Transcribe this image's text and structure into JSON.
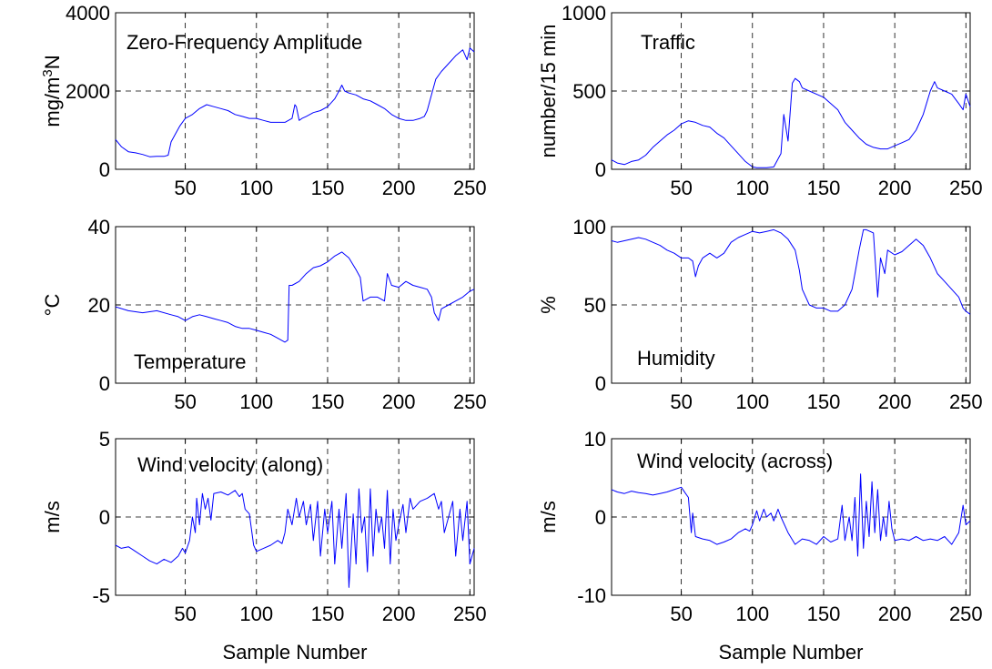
{
  "colors": {
    "series": "#0000ff",
    "axes": "#000000",
    "background": "#ffffff"
  },
  "chart_data": [
    {
      "type": "line",
      "annotation": "Zero-Frequency Amplitude",
      "ylabel": "mg/m³N",
      "xlabel": "",
      "xlim": [
        1,
        253
      ],
      "ylim": [
        0,
        4000
      ],
      "xticks": [
        50,
        100,
        150,
        200,
        250
      ],
      "yticks": [
        0,
        2000,
        4000
      ],
      "grid": true,
      "x": [
        1,
        5,
        10,
        15,
        20,
        25,
        30,
        35,
        38,
        40,
        43,
        46,
        50,
        55,
        60,
        65,
        70,
        75,
        80,
        85,
        90,
        95,
        100,
        105,
        110,
        115,
        120,
        125,
        127,
        128,
        130,
        132,
        135,
        140,
        145,
        150,
        155,
        158,
        160,
        162,
        165,
        170,
        175,
        180,
        185,
        190,
        195,
        200,
        205,
        210,
        215,
        218,
        220,
        223,
        226,
        230,
        235,
        240,
        245,
        248,
        250,
        253
      ],
      "y": [
        760,
        580,
        450,
        420,
        380,
        320,
        330,
        330,
        360,
        700,
        900,
        1100,
        1300,
        1400,
        1550,
        1650,
        1600,
        1550,
        1500,
        1400,
        1350,
        1300,
        1300,
        1250,
        1200,
        1200,
        1200,
        1300,
        1650,
        1600,
        1250,
        1300,
        1350,
        1450,
        1500,
        1600,
        1800,
        2000,
        2150,
        2000,
        1950,
        1900,
        1800,
        1750,
        1650,
        1550,
        1400,
        1300,
        1250,
        1250,
        1300,
        1350,
        1500,
        1900,
        2300,
        2500,
        2700,
        2900,
        3050,
        2800,
        3100,
        3000
      ]
    },
    {
      "type": "line",
      "annotation": "Traffic",
      "ylabel": "number/15 min",
      "xlabel": "",
      "xlim": [
        1,
        253
      ],
      "ylim": [
        0,
        1000
      ],
      "xticks": [
        50,
        100,
        150,
        200,
        250
      ],
      "yticks": [
        0,
        500,
        1000
      ],
      "grid": true,
      "x": [
        1,
        5,
        10,
        15,
        20,
        25,
        30,
        35,
        40,
        45,
        50,
        55,
        60,
        65,
        70,
        75,
        80,
        85,
        90,
        95,
        100,
        103,
        105,
        110,
        115,
        120,
        122,
        125,
        128,
        130,
        133,
        135,
        140,
        145,
        150,
        155,
        160,
        165,
        170,
        175,
        180,
        185,
        190,
        195,
        200,
        205,
        210,
        215,
        220,
        225,
        228,
        230,
        235,
        240,
        245,
        248,
        250,
        253
      ],
      "y": [
        60,
        40,
        30,
        50,
        60,
        90,
        140,
        180,
        220,
        250,
        290,
        310,
        300,
        280,
        270,
        230,
        200,
        150,
        100,
        50,
        15,
        10,
        10,
        10,
        15,
        100,
        350,
        180,
        550,
        580,
        560,
        520,
        500,
        480,
        460,
        420,
        380,
        300,
        250,
        200,
        160,
        140,
        130,
        130,
        150,
        170,
        190,
        250,
        350,
        500,
        560,
        520,
        500,
        480,
        420,
        380,
        480,
        400
      ]
    },
    {
      "type": "line",
      "annotation": "Temperature",
      "ylabel": "°C",
      "xlabel": "",
      "xlim": [
        1,
        253
      ],
      "ylim": [
        0,
        40
      ],
      "xticks": [
        50,
        100,
        150,
        200,
        250
      ],
      "yticks": [
        0,
        20,
        40
      ],
      "grid": true,
      "x": [
        1,
        10,
        20,
        30,
        40,
        45,
        50,
        55,
        60,
        65,
        70,
        75,
        80,
        85,
        90,
        95,
        100,
        105,
        110,
        115,
        120,
        122,
        123,
        125,
        130,
        135,
        140,
        145,
        150,
        155,
        160,
        165,
        170,
        173,
        175,
        180,
        185,
        190,
        192,
        195,
        200,
        205,
        210,
        215,
        220,
        223,
        225,
        228,
        230,
        235,
        240,
        245,
        250,
        253
      ],
      "y": [
        19.5,
        18.5,
        18,
        18.5,
        17.5,
        17,
        16,
        17,
        17.5,
        17,
        16.5,
        16,
        15.5,
        14.5,
        14,
        14,
        13.5,
        13,
        12.5,
        11.5,
        10.5,
        11,
        25,
        25,
        26,
        28,
        29.5,
        30,
        31,
        32.5,
        33.5,
        32,
        29,
        27,
        21,
        22,
        22,
        21,
        28,
        25,
        24.5,
        26,
        25,
        24.5,
        24,
        22,
        18,
        16,
        19,
        20,
        21,
        22,
        23.5,
        24
      ]
    },
    {
      "type": "line",
      "annotation": "Humidity",
      "ylabel": "%",
      "xlabel": "",
      "xlim": [
        1,
        253
      ],
      "ylim": [
        0,
        100
      ],
      "xticks": [
        50,
        100,
        150,
        200,
        250
      ],
      "yticks": [
        0,
        50,
        100
      ],
      "grid": true,
      "x": [
        1,
        5,
        10,
        15,
        20,
        25,
        30,
        35,
        40,
        45,
        50,
        55,
        58,
        60,
        62,
        65,
        70,
        75,
        80,
        85,
        90,
        95,
        100,
        105,
        110,
        115,
        120,
        125,
        130,
        133,
        135,
        140,
        145,
        150,
        155,
        160,
        165,
        170,
        172,
        175,
        178,
        180,
        185,
        188,
        190,
        193,
        195,
        200,
        205,
        210,
        215,
        220,
        225,
        230,
        235,
        240,
        245,
        248,
        250,
        253
      ],
      "y": [
        91,
        90,
        91,
        92,
        93,
        92,
        90,
        88,
        85,
        83,
        80,
        80,
        78,
        68,
        75,
        80,
        83,
        80,
        83,
        90,
        93,
        95,
        97,
        96,
        97,
        98,
        96,
        92,
        85,
        72,
        60,
        50,
        48,
        48,
        46,
        46,
        50,
        60,
        70,
        85,
        98,
        98,
        96,
        55,
        80,
        70,
        85,
        82,
        84,
        88,
        92,
        88,
        80,
        70,
        65,
        60,
        55,
        48,
        46,
        44
      ]
    },
    {
      "type": "line",
      "annotation": "Wind velocity (along)",
      "ylabel": "m/s",
      "xlabel": "Sample Number",
      "xlim": [
        1,
        253
      ],
      "ylim": [
        -5,
        5
      ],
      "xticks": [
        50,
        100,
        150,
        200,
        250
      ],
      "yticks": [
        -5,
        0,
        5
      ],
      "grid": true,
      "x": [
        1,
        5,
        10,
        15,
        20,
        25,
        30,
        35,
        40,
        45,
        48,
        50,
        53,
        55,
        57,
        58,
        60,
        62,
        64,
        66,
        68,
        70,
        75,
        80,
        85,
        88,
        90,
        92,
        95,
        98,
        100,
        105,
        110,
        115,
        118,
        120,
        122,
        125,
        128,
        130,
        133,
        135,
        138,
        140,
        143,
        145,
        148,
        150,
        153,
        155,
        158,
        160,
        163,
        165,
        168,
        170,
        172,
        174,
        176,
        178,
        180,
        182,
        184,
        186,
        188,
        190,
        192,
        194,
        196,
        198,
        200,
        203,
        205,
        208,
        210,
        215,
        220,
        225,
        228,
        230,
        232,
        235,
        238,
        240,
        243,
        245,
        248,
        250,
        253
      ],
      "y": [
        -1.8,
        -2,
        -1.9,
        -2.2,
        -2.5,
        -2.8,
        -3,
        -2.7,
        -2.9,
        -2.5,
        -2,
        -2.3,
        -1.5,
        0,
        -1,
        1.2,
        -0.5,
        1.5,
        0.5,
        1.2,
        -0.2,
        1.5,
        1.6,
        1.4,
        1.7,
        1.3,
        1.5,
        0.5,
        0.2,
        -1.8,
        -2.2,
        -2,
        -1.8,
        -1.5,
        -1.7,
        -1,
        0.5,
        -0.5,
        1.2,
        0,
        1,
        -0.5,
        0.8,
        -1.5,
        1,
        -2.5,
        0.5,
        -1,
        1,
        -3,
        0.5,
        -2,
        1.5,
        -4.5,
        0.2,
        -3,
        1.8,
        -1,
        0,
        -3.5,
        1.8,
        -2.5,
        0.5,
        -1,
        0,
        -2,
        1.7,
        -3,
        0.5,
        -1.5,
        -0.5,
        0.8,
        -1,
        1.2,
        0.5,
        1,
        1.2,
        1.5,
        0.5,
        1,
        -1,
        0,
        1,
        -2.5,
        0.5,
        -1.5,
        1,
        -3,
        -2
      ]
    },
    {
      "type": "line",
      "annotation": "Wind velocity (across)",
      "ylabel": "m/s",
      "xlabel": "Sample Number",
      "xlim": [
        1,
        253
      ],
      "ylim": [
        -10,
        10
      ],
      "xticks": [
        50,
        100,
        150,
        200,
        250
      ],
      "yticks": [
        -10,
        0,
        10
      ],
      "grid": true,
      "x": [
        1,
        5,
        10,
        15,
        20,
        25,
        30,
        35,
        40,
        45,
        50,
        53,
        55,
        57,
        58,
        60,
        65,
        70,
        75,
        80,
        85,
        90,
        95,
        98,
        100,
        103,
        105,
        108,
        110,
        113,
        115,
        118,
        120,
        125,
        130,
        135,
        140,
        145,
        150,
        155,
        160,
        163,
        165,
        168,
        170,
        172,
        174,
        176,
        178,
        180,
        182,
        184,
        186,
        188,
        190,
        192,
        194,
        196,
        198,
        200,
        205,
        210,
        215,
        220,
        225,
        230,
        235,
        240,
        245,
        248,
        250,
        253
      ],
      "y": [
        3.5,
        3.2,
        3,
        3.3,
        3.1,
        3,
        2.8,
        3,
        3.2,
        3.5,
        3.8,
        3,
        2.5,
        -2,
        0.5,
        -2.5,
        -2.8,
        -3,
        -3.5,
        -3.2,
        -2.8,
        -2,
        -1.5,
        -1.8,
        -1,
        0.8,
        -0.5,
        1,
        0,
        0.5,
        -0.5,
        1,
        0,
        -2,
        -3.5,
        -2.8,
        -3,
        -3.5,
        -2.5,
        -3.2,
        -2.8,
        1.5,
        -3,
        0,
        -3,
        2.5,
        -5,
        5.5,
        -4,
        2,
        -2.5,
        4.5,
        -2,
        3.5,
        -3,
        0,
        -2.5,
        2,
        -1.5,
        -3,
        -2.8,
        -3,
        -2.5,
        -3,
        -2.8,
        -3,
        -2.5,
        -3.5,
        -2,
        1.5,
        -1,
        -0.5
      ]
    }
  ]
}
